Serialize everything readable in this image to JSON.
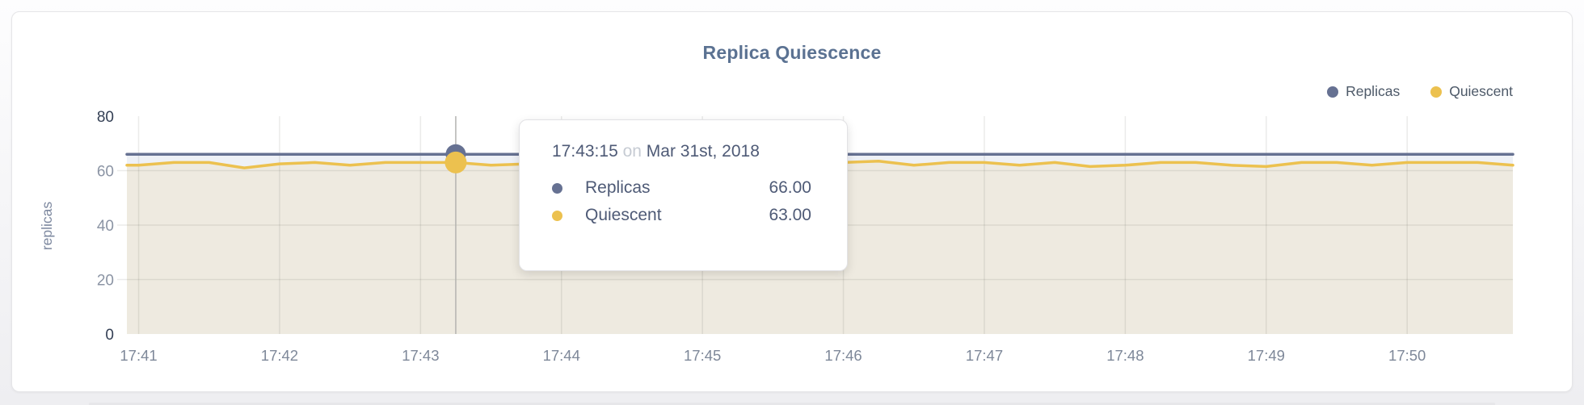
{
  "header": {
    "title": "Replica Quiescence"
  },
  "axis": {
    "ylabel": "replicas",
    "yticks": [
      "0",
      "20",
      "40",
      "60",
      "80"
    ],
    "xticks": [
      "17:41",
      "17:42",
      "17:43",
      "17:44",
      "17:45",
      "17:46",
      "17:47",
      "17:48",
      "17:49",
      "17:50"
    ]
  },
  "legend": {
    "items": [
      {
        "label": "Replicas",
        "color": "#667192"
      },
      {
        "label": "Quiescent",
        "color": "#ecc14f"
      }
    ]
  },
  "tooltip": {
    "time": "17:43:15",
    "conj": "on",
    "date": "Mar 31st, 2018",
    "rows": [
      {
        "label": "Replicas",
        "value": "66.00",
        "color": "#667192"
      },
      {
        "label": "Quiescent",
        "value": "63.00",
        "color": "#ecc14f"
      }
    ]
  },
  "colors": {
    "replicas_line": "#667192",
    "replicas_fill": "#eef1f6",
    "quiescent_line": "#ecc14f",
    "quiescent_fill": "#eeeae0",
    "grid": "rgba(60,60,50,0.10)",
    "crosshair": "#b4b4b0",
    "axis_major_tick": "#333f54",
    "axis_minor_tick": "#8b94a4",
    "x_tick": "#7e8899",
    "axis_title": "#7e89a0",
    "title": "#5b7292"
  },
  "chart_data": {
    "type": "line",
    "title": "Replica Quiescence",
    "xlabel": "",
    "ylabel": "replicas",
    "ylim": [
      0,
      80
    ],
    "grid": true,
    "legend_position": "top-right",
    "x": [
      "17:41:00",
      "17:41:15",
      "17:41:30",
      "17:41:45",
      "17:42:00",
      "17:42:15",
      "17:42:30",
      "17:42:45",
      "17:43:00",
      "17:43:15",
      "17:43:30",
      "17:43:45",
      "17:44:00",
      "17:44:15",
      "17:44:30",
      "17:44:45",
      "17:45:00",
      "17:45:15",
      "17:45:30",
      "17:45:45",
      "17:46:00",
      "17:46:15",
      "17:46:30",
      "17:46:45",
      "17:47:00",
      "17:47:15",
      "17:47:30",
      "17:47:45",
      "17:48:00",
      "17:48:15",
      "17:48:30",
      "17:48:45",
      "17:49:00",
      "17:49:15",
      "17:49:30",
      "17:49:45",
      "17:50:00",
      "17:50:15",
      "17:50:30",
      "17:50:45"
    ],
    "series": [
      {
        "name": "Replicas",
        "color": "#667192",
        "values": [
          66,
          66,
          66,
          66,
          66,
          66,
          66,
          66,
          66,
          66,
          66,
          66,
          66,
          66,
          66,
          66,
          66,
          66,
          66,
          66,
          66,
          66,
          66,
          66,
          66,
          66,
          66,
          66,
          66,
          66,
          66,
          66,
          66,
          66,
          66,
          66,
          66,
          66,
          66,
          66
        ]
      },
      {
        "name": "Quiescent",
        "color": "#ecc14f",
        "values": [
          62,
          63,
          63,
          61,
          62.5,
          63,
          62,
          63,
          63,
          63,
          62,
          62.5,
          63,
          62,
          63,
          63,
          62.5,
          63,
          63,
          62,
          63,
          63.5,
          62,
          63,
          63,
          62,
          63,
          61.5,
          62,
          63,
          63,
          62,
          61.5,
          63,
          63,
          62,
          63,
          63,
          63,
          62
        ]
      }
    ],
    "hover_point": {
      "x": "17:43:15",
      "date": "Mar 31st, 2018",
      "Replicas": 66.0,
      "Quiescent": 63.0
    }
  }
}
